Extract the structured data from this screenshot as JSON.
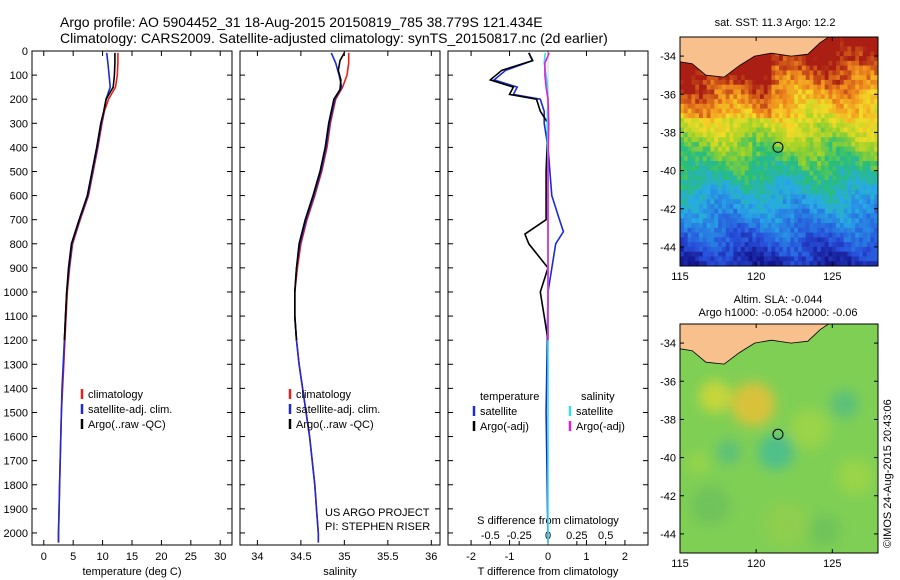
{
  "header": {
    "line1": "Argo profile: AO 5904452_31 18-Aug-2015 20150819_785 38.779S 121.434E",
    "line2": "Climatology: CARS2009. Satellite-adjusted climatology: synTS_20150817.nc (2d earlier)"
  },
  "credits": {
    "line1": "US ARGO PROJECT",
    "line2": "PI: STEPHEN RISER",
    "stamp": "©IMOS 24-Aug-2015 20:43:06"
  },
  "colors": {
    "climatology": "#e8201a",
    "satellite": "#1c2bd4",
    "argo": "#000000",
    "sal_satellite": "#33e0e6",
    "sal_argo": "#e020d8",
    "land": "#f7c08c"
  },
  "depth_axis": {
    "range": [
      0,
      2050
    ],
    "ticks": [
      0,
      100,
      200,
      300,
      400,
      500,
      600,
      700,
      800,
      900,
      1000,
      1100,
      1200,
      1300,
      1400,
      1500,
      1600,
      1700,
      1800,
      1900,
      2000
    ]
  },
  "chart_data": [
    {
      "type": "line",
      "name": "temperature",
      "xlabel": "temperature (deg C)",
      "xlim": [
        -2,
        32
      ],
      "xticks": [
        0,
        5,
        10,
        15,
        20,
        25,
        30
      ],
      "ylim": [
        2050,
        0
      ],
      "legend": {
        "placement": "lower-center",
        "items": [
          "climatology",
          "satellite-adj. clim.",
          "Argo(..raw -QC)"
        ]
      },
      "series": [
        {
          "name": "climatology",
          "color": "#e8201a",
          "y": [
            8,
            50,
            100,
            150,
            200,
            250,
            300,
            400,
            500,
            600,
            700,
            800,
            900,
            1000,
            1100,
            1200,
            1300,
            1400,
            1500,
            1600,
            1700,
            1800,
            1900,
            2000,
            2040
          ],
          "values": [
            12.6,
            12.6,
            12.5,
            12.2,
            11.0,
            10.3,
            9.9,
            9.2,
            8.4,
            7.6,
            6.2,
            4.9,
            4.4,
            4.0,
            3.8,
            3.6,
            3.4,
            3.2,
            3.0,
            2.9,
            2.8,
            2.7,
            2.6,
            2.5,
            2.5
          ]
        },
        {
          "name": "satellite-adj. clim.",
          "color": "#1c2bd4",
          "y": [
            8,
            50,
            100,
            150,
            200,
            250,
            300,
            400,
            500,
            600,
            700,
            800,
            900,
            1000,
            1100,
            1200,
            1300,
            1400,
            1500,
            1600,
            1700,
            1800,
            1900,
            2000,
            2040
          ],
          "values": [
            10.7,
            10.9,
            11.1,
            11.3,
            10.6,
            10.2,
            9.8,
            9.1,
            8.3,
            7.5,
            6.1,
            4.8,
            4.3,
            3.9,
            3.7,
            3.5,
            3.3,
            3.1,
            3.0,
            2.9,
            2.8,
            2.7,
            2.6,
            2.5,
            2.5
          ]
        },
        {
          "name": "Argo(..raw -QC)",
          "color": "#000000",
          "y": [
            8,
            50,
            100,
            150,
            200,
            250,
            300,
            400,
            500,
            600,
            700,
            800,
            900,
            1000,
            1100,
            1200
          ],
          "values": [
            12.1,
            12.1,
            12.0,
            11.8,
            10.6,
            10.2,
            9.7,
            9.0,
            8.2,
            7.4,
            6.0,
            4.7,
            4.2,
            3.9,
            3.7,
            3.5
          ]
        }
      ]
    },
    {
      "type": "line",
      "name": "salinity",
      "xlabel": "salinity",
      "xlim": [
        33.8,
        36.1
      ],
      "xticks": [
        34,
        34.5,
        35,
        35.5,
        36
      ],
      "ylim": [
        2050,
        0
      ],
      "legend": {
        "placement": "lower-center",
        "items": [
          "climatology",
          "satellite-adj. clim.",
          "Argo(..raw -QC)"
        ]
      },
      "series": [
        {
          "name": "climatology",
          "color": "#e8201a",
          "y": [
            8,
            50,
            100,
            150,
            200,
            250,
            300,
            400,
            500,
            600,
            700,
            800,
            900,
            1000,
            1100,
            1200,
            1300,
            1400,
            1500,
            1600,
            1700,
            1800,
            1900,
            2000,
            2040
          ],
          "values": [
            35.05,
            35.05,
            35.03,
            34.98,
            34.9,
            34.87,
            34.84,
            34.8,
            34.74,
            34.66,
            34.57,
            34.5,
            34.46,
            34.43,
            34.43,
            34.45,
            34.48,
            34.52,
            34.56,
            34.6,
            34.63,
            34.66,
            34.68,
            34.7,
            34.7
          ]
        },
        {
          "name": "satellite-adj. clim.",
          "color": "#1c2bd4",
          "y": [
            8,
            50,
            100,
            150,
            200,
            250,
            300,
            400,
            500,
            600,
            700,
            800,
            900,
            1000,
            1100,
            1200,
            1300,
            1400,
            1500,
            1600,
            1700,
            1800,
            1900,
            2000,
            2040
          ],
          "values": [
            34.85,
            34.9,
            34.94,
            34.97,
            34.89,
            34.86,
            34.83,
            34.79,
            34.73,
            34.65,
            34.56,
            34.49,
            34.45,
            34.43,
            34.43,
            34.45,
            34.48,
            34.52,
            34.56,
            34.6,
            34.63,
            34.66,
            34.68,
            34.7,
            34.7
          ]
        },
        {
          "name": "Argo(..raw -QC)",
          "color": "#000000",
          "y": [
            8,
            40,
            80,
            120,
            160,
            200,
            250,
            300,
            400,
            500,
            600,
            700,
            800,
            900,
            1000,
            1100,
            1200
          ],
          "values": [
            35.0,
            34.95,
            34.93,
            34.96,
            34.95,
            34.88,
            34.85,
            34.82,
            34.78,
            34.72,
            34.64,
            34.55,
            34.48,
            34.45,
            34.43,
            34.43,
            34.45
          ]
        }
      ]
    },
    {
      "type": "line",
      "name": "differences",
      "xlabel": "T difference from climatology",
      "xlabel_top": "S difference from climatology",
      "xlim": [
        -2.6,
        2.6
      ],
      "xticks": [
        -2,
        -1,
        0,
        1,
        2
      ],
      "xticks_top": [
        "-0.5",
        "-0.25",
        "0",
        "0.25",
        "0.5"
      ],
      "ylim": [
        2050,
        0
      ],
      "legend": {
        "placement": "lower-center",
        "temperature_header": "temperature",
        "salinity_header": "salinity",
        "items": [
          "satellite",
          "Argo(-adj)",
          "satellite",
          "Argo(-adj)"
        ]
      },
      "series": [
        {
          "name": "T satellite",
          "color": "#1c2bd4",
          "y": [
            8,
            40,
            80,
            120,
            150,
            180,
            200,
            250,
            300,
            400,
            600,
            700,
            750,
            800,
            1000,
            1500,
            2040
          ],
          "values": [
            -0.5,
            -0.4,
            -1.1,
            -1.4,
            -0.8,
            -0.9,
            -0.2,
            -0.1,
            -0.1,
            0.0,
            0.1,
            0.3,
            0.4,
            0.2,
            0.0,
            -0.05,
            0.0
          ]
        },
        {
          "name": "T Argo(-adj)",
          "color": "#000000",
          "y": [
            8,
            40,
            80,
            120,
            150,
            180,
            200,
            250,
            300,
            500,
            700,
            760,
            800,
            900,
            1000,
            1100,
            1200
          ],
          "values": [
            -0.5,
            -0.4,
            -1.2,
            -1.5,
            -0.9,
            -1.0,
            -0.3,
            -0.2,
            0.0,
            -0.05,
            -0.05,
            -0.6,
            -0.5,
            0.0,
            -0.2,
            -0.1,
            0.0
          ]
        },
        {
          "name": "S satellite",
          "color": "#33e0e6",
          "y": [
            8,
            50,
            100,
            150,
            200,
            300,
            500,
            1000,
            2040
          ],
          "values": [
            -0.07,
            -0.1,
            -0.05,
            -0.01,
            0.0,
            -0.02,
            0.0,
            0.0,
            0.0
          ]
        },
        {
          "name": "S Argo(-adj)",
          "color": "#e020d8",
          "y": [
            8,
            50,
            100,
            150,
            200,
            300,
            500,
            1000,
            1200
          ],
          "values": [
            0.03,
            -0.08,
            -0.08,
            -0.05,
            0.0,
            0.02,
            0.0,
            0.0,
            0.0
          ]
        }
      ]
    },
    {
      "type": "heatmap",
      "name": "sst_map",
      "title": "sat. SST: 11.3 Argo: 12.2",
      "xlim": [
        115,
        128
      ],
      "ylim": [
        -45,
        -33
      ],
      "xticks": [
        115,
        120,
        125
      ],
      "yticks": [
        -34,
        -36,
        -38,
        -40,
        -42,
        -44
      ],
      "marker": {
        "lon": 121.434,
        "lat": -38.779
      }
    },
    {
      "type": "heatmap",
      "name": "sla_map",
      "title": "Altim. SLA: -0.044",
      "subtitle": "Argo h1000: -0.054 h2000: -0.06",
      "xlim": [
        115,
        128
      ],
      "ylim": [
        -45,
        -33
      ],
      "xticks": [
        115,
        120,
        125
      ],
      "yticks": [
        -34,
        -36,
        -38,
        -40,
        -42,
        -44
      ],
      "marker": {
        "lon": 121.434,
        "lat": -38.779
      }
    }
  ]
}
